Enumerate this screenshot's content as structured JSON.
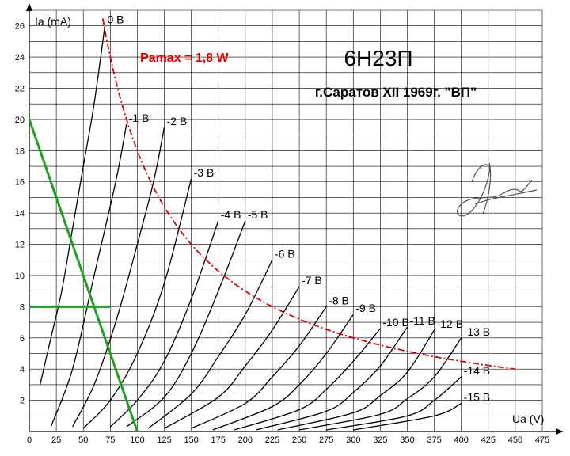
{
  "chart_data": {
    "type": "line",
    "title": "6Н23П",
    "subtitle": "г.Саратов XII 1969г. \"ВП\"",
    "xlabel": "Ua (V)",
    "ylabel": "Ia (mA)",
    "xlim": [
      0,
      475
    ],
    "ylim": [
      0,
      27
    ],
    "x_ticks": [
      "0",
      "25",
      "50",
      "75",
      "100",
      "125",
      "150",
      "175",
      "200",
      "225",
      "250",
      "275",
      "300",
      "325",
      "350",
      "375",
      "400",
      "425",
      "450",
      "475"
    ],
    "y_ticks": [
      "2",
      "4",
      "6",
      "8",
      "10",
      "12",
      "14",
      "16",
      "18",
      "20",
      "22",
      "24",
      "26"
    ],
    "grid": true,
    "series": [
      {
        "name": "0 В",
        "x": [
          10,
          20,
          30,
          40,
          50,
          60,
          70
        ],
        "y": [
          3,
          6,
          9,
          13,
          17,
          21,
          26
        ]
      },
      {
        "name": "-1 В",
        "x": [
          20,
          40,
          60,
          80,
          90
        ],
        "y": [
          0.3,
          4,
          10,
          16,
          19.7
        ]
      },
      {
        "name": "-2 В",
        "x": [
          40,
          60,
          80,
          100,
          115,
          125
        ],
        "y": [
          0.3,
          3,
          7,
          12,
          16,
          19.5
        ]
      },
      {
        "name": "-3 В",
        "x": [
          50,
          75,
          100,
          125,
          150
        ],
        "y": [
          0.2,
          2,
          5,
          9.5,
          16.2
        ]
      },
      {
        "name": "-4 В",
        "x": [
          75,
          100,
          125,
          150,
          175
        ],
        "y": [
          0.3,
          2,
          4.5,
          8.5,
          13.5
        ]
      },
      {
        "name": "-5 В",
        "x": [
          90,
          125,
          150,
          175,
          200
        ],
        "y": [
          0.3,
          2.2,
          5,
          9,
          13.5
        ]
      },
      {
        "name": "-6 В",
        "x": [
          110,
          150,
          175,
          200,
          225
        ],
        "y": [
          0.2,
          2.4,
          4.8,
          7.5,
          11
        ]
      },
      {
        "name": "-7 В",
        "x": [
          125,
          175,
          200,
          225,
          250
        ],
        "y": [
          0.2,
          2.2,
          4.2,
          6.5,
          9.3
        ]
      },
      {
        "name": "-8 В",
        "x": [
          150,
          200,
          225,
          250,
          275
        ],
        "y": [
          0.2,
          1.8,
          3.5,
          5.5,
          8
        ]
      },
      {
        "name": "-9 В",
        "x": [
          170,
          225,
          250,
          275,
          300
        ],
        "y": [
          0.1,
          1.6,
          3,
          5,
          7.5
        ]
      },
      {
        "name": "-10 В",
        "x": [
          190,
          250,
          275,
          300,
          325
        ],
        "y": [
          0.1,
          1.4,
          2.7,
          4.5,
          6.6
        ]
      },
      {
        "name": "-11 В",
        "x": [
          210,
          275,
          300,
          325,
          350
        ],
        "y": [
          0.1,
          1.3,
          2.5,
          4.2,
          6.7
        ]
      },
      {
        "name": "-12 В",
        "x": [
          230,
          300,
          325,
          350,
          375
        ],
        "y": [
          0.1,
          1.2,
          2.3,
          3.8,
          6.5
        ]
      },
      {
        "name": "-13 В",
        "x": [
          250,
          325,
          350,
          375,
          400
        ],
        "y": [
          0.1,
          1.1,
          2.1,
          3.5,
          6
        ]
      },
      {
        "name": "-14 В",
        "x": [
          275,
          350,
          375,
          400
        ],
        "y": [
          0.1,
          1,
          2,
          3.5
        ]
      },
      {
        "name": "-15 В",
        "x": [
          300,
          375,
          400
        ],
        "y": [
          0.1,
          1,
          1.8
        ]
      }
    ],
    "pmax": {
      "name": "Pamax = 1,8 W",
      "watts": 1.8,
      "x_from": 68,
      "x_to": 450,
      "color": "#e00000"
    },
    "load_line": {
      "points": [
        [
          0,
          20
        ],
        [
          100,
          0
        ]
      ],
      "color": "#20a020"
    },
    "operating_level": {
      "y": 8,
      "x_from": 0,
      "x_to": 75,
      "color": "#20a020"
    }
  }
}
